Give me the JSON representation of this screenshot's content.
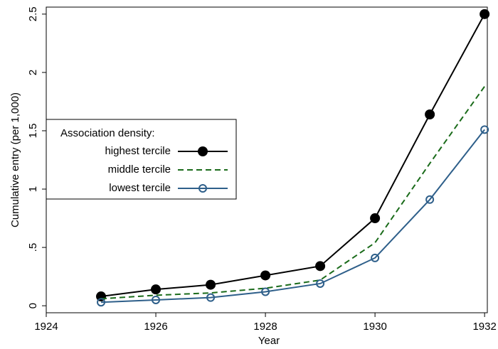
{
  "chart_data": {
    "type": "line",
    "x": [
      1925,
      1926,
      1927,
      1928,
      1929,
      1930,
      1931,
      1932
    ],
    "series": [
      {
        "name": "highest tercile",
        "color": "#000000",
        "marker": "filled-circle",
        "dash": "solid",
        "values": [
          0.08,
          0.14,
          0.18,
          0.26,
          0.34,
          0.75,
          1.64,
          2.5
        ]
      },
      {
        "name": "middle tercile",
        "color": "#1a6b1a",
        "marker": "none",
        "dash": "dashed",
        "values": [
          0.06,
          0.09,
          0.11,
          0.15,
          0.22,
          0.54,
          1.22,
          1.88
        ]
      },
      {
        "name": "lowest tercile",
        "color": "#2e5f8a",
        "marker": "hollow-circle",
        "dash": "solid",
        "values": [
          0.03,
          0.05,
          0.07,
          0.12,
          0.19,
          0.41,
          0.91,
          1.51
        ]
      }
    ],
    "legend_title": "Association density:",
    "xlabel": "Year",
    "ylabel": "Cumulative entry (per 1,000)",
    "xlim": [
      1924,
      1932.05
    ],
    "xticks": [
      1924,
      1926,
      1928,
      1930,
      1932
    ],
    "ylim": [
      -0.06,
      2.56
    ],
    "yticks": [
      0,
      {
        "value": 0.5,
        "label": ".5"
      },
      1,
      1.5,
      2,
      2.5
    ],
    "legend_position": "left"
  }
}
